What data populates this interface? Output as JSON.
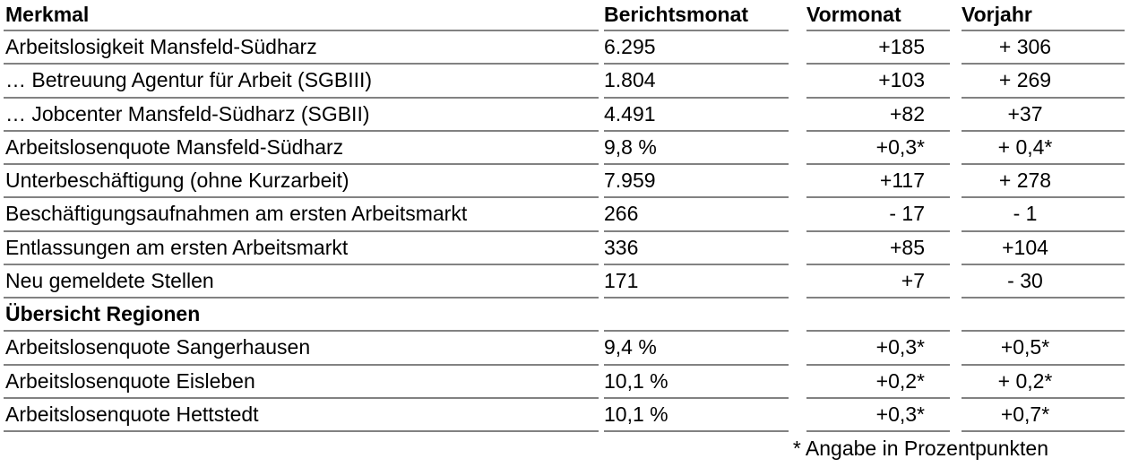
{
  "table": {
    "columns": {
      "merkmal": "Merkmal",
      "berichtsmonat": "Berichtsmonat",
      "vormonat": "Vormonat",
      "vorjahr": "Vorjahr"
    },
    "rows": [
      {
        "label": "Arbeitslosigkeit Mansfeld-Südharz",
        "berichtsmonat": "6.295",
        "vormonat": "+185",
        "vorjahr": "+ 306"
      },
      {
        "label": "… Betreuung Agentur für Arbeit (SGBIII)",
        "berichtsmonat": "1.804",
        "vormonat": "+103",
        "vorjahr": "+ 269"
      },
      {
        "label": "… Jobcenter Mansfeld-Südharz (SGBII)",
        "berichtsmonat": "4.491",
        "vormonat": "+82",
        "vorjahr": "+37"
      },
      {
        "label": "Arbeitslosenquote Mansfeld-Südharz",
        "berichtsmonat": "9,8 %",
        "vormonat": "+0,3*",
        "vorjahr": "+ 0,4*"
      },
      {
        "label": "Unterbeschäftigung (ohne Kurzarbeit)",
        "berichtsmonat": "7.959",
        "vormonat": "+117",
        "vorjahr": "+ 278"
      },
      {
        "label": "Beschäftigungsaufnahmen am ersten Arbeitsmarkt",
        "berichtsmonat": "266",
        "vormonat": "- 17",
        "vorjahr": "- 1"
      },
      {
        "label": "Entlassungen am ersten Arbeitsmarkt",
        "berichtsmonat": "336",
        "vormonat": "+85",
        "vorjahr": "+104"
      },
      {
        "label": "Neu gemeldete Stellen",
        "berichtsmonat": "171",
        "vormonat": "+7",
        "vorjahr": "- 30"
      }
    ],
    "section": {
      "label": "Übersicht Regionen"
    },
    "region_rows": [
      {
        "label": "Arbeitslosenquote Sangerhausen",
        "berichtsmonat": "9,4 %",
        "vormonat": "+0,3*",
        "vorjahr": "+0,5*"
      },
      {
        "label": "Arbeitslosenquote Eisleben",
        "berichtsmonat": "10,1 %",
        "vormonat": "+0,2*",
        "vorjahr": "+ 0,2*"
      },
      {
        "label": "Arbeitslosenquote Hettstedt",
        "berichtsmonat": "10,1 %",
        "vormonat": "+0,3*",
        "vorjahr": "+0,7*"
      }
    ],
    "footnote": "* Angabe in Prozentpunkten",
    "line_color": "#828282"
  }
}
